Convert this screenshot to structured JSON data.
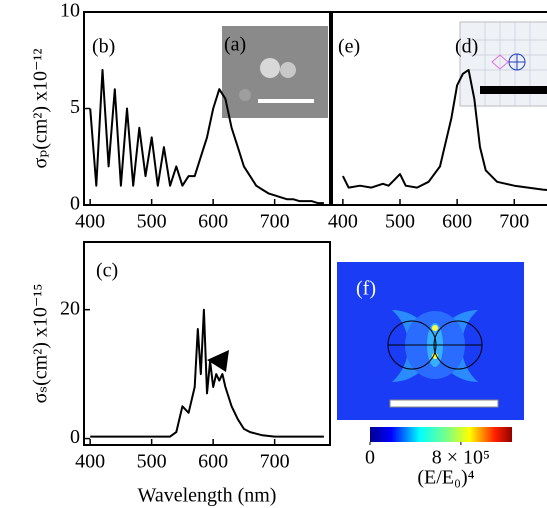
{
  "chart_data": [
    {
      "type": "line",
      "panel_label": "(b)",
      "inset_label": "(a)",
      "y_label": "σₚ(cm²) x10⁻¹²",
      "x": [
        400,
        410,
        420,
        430,
        440,
        450,
        460,
        470,
        480,
        490,
        500,
        510,
        520,
        530,
        540,
        550,
        560,
        570,
        580,
        590,
        600,
        610,
        620,
        630,
        640,
        650,
        660,
        670,
        680,
        690,
        700,
        710,
        720,
        730,
        740,
        750,
        760,
        770,
        780
      ],
      "values": [
        5,
        1,
        7,
        2,
        6,
        1,
        5,
        1,
        4,
        1.5,
        3.5,
        1,
        3,
        1,
        2,
        1,
        1.5,
        1.5,
        2.5,
        3.5,
        5,
        6,
        5.5,
        4,
        3,
        2,
        1.5,
        1,
        0.8,
        0.6,
        0.5,
        0.4,
        0.3,
        0.3,
        0.2,
        0.2,
        0.2,
        0.1,
        0.1
      ],
      "color": "#000000",
      "xlim": [
        390,
        790
      ],
      "ylim": [
        0,
        10
      ],
      "xticks": [
        400,
        500,
        600,
        700
      ],
      "yticks": [
        0,
        5,
        10
      ]
    },
    {
      "type": "line",
      "panel_label": "(e)",
      "inset_label": "(d)",
      "x": [
        400,
        410,
        430,
        450,
        470,
        480,
        490,
        500,
        510,
        530,
        550,
        570,
        590,
        600,
        610,
        620,
        630,
        640,
        650,
        670,
        700,
        750,
        780
      ],
      "values": [
        0.15,
        0.09,
        0.1,
        0.09,
        0.11,
        0.1,
        0.13,
        0.16,
        0.1,
        0.09,
        0.12,
        0.2,
        0.45,
        0.62,
        0.68,
        0.7,
        0.55,
        0.3,
        0.18,
        0.12,
        0.1,
        0.08,
        0.07
      ],
      "color": "#000000",
      "xlim": [
        381,
        780
      ],
      "ylim": [
        0,
        1
      ],
      "xticks": [
        400,
        500,
        600,
        700
      ]
    },
    {
      "type": "line",
      "panel_label": "(c)",
      "y_label": "σₛ(cm²) x10⁻¹⁵",
      "x_label": "Wavelength (nm)",
      "x": [
        400,
        450,
        500,
        530,
        540,
        550,
        560,
        570,
        575,
        580,
        585,
        590,
        595,
        600,
        605,
        610,
        615,
        620,
        630,
        640,
        650,
        660,
        680,
        700,
        740,
        780
      ],
      "values": [
        0.3,
        0.3,
        0.3,
        0.3,
        1,
        5,
        4,
        8,
        17,
        10,
        20,
        7,
        12,
        8,
        10,
        9,
        10,
        8,
        5,
        3,
        1.5,
        1,
        0.5,
        0.3,
        0.3,
        0.3
      ],
      "color": "#000000",
      "xlim": [
        390,
        790
      ],
      "ylim": [
        -1,
        30.5
      ],
      "xticks": [
        400,
        500,
        600,
        700
      ],
      "yticks": [
        0,
        20
      ]
    },
    {
      "type": "colormap",
      "panel_label": "(f)",
      "colorbar_label": "(E/E₀)⁴",
      "clim": [
        0,
        1250000
      ],
      "cticks": [
        0,
        {
          "value": 800000,
          "label": "8 × 10⁵"
        }
      ]
    }
  ]
}
